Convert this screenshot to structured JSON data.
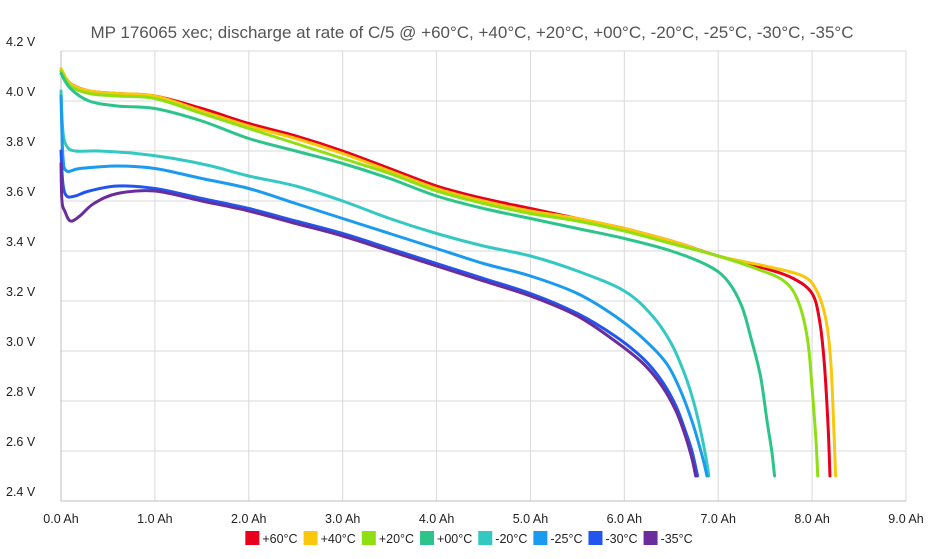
{
  "chart_data": {
    "type": "line",
    "title": "MP 176065 xec; discharge at rate of C/5 @ +60°C, +40°C, +20°C, +00°C, -20°C, -25°C, -30°C, -35°C",
    "xlabel": "",
    "ylabel": "",
    "xlim": [
      0,
      9
    ],
    "ylim": [
      2.4,
      4.2
    ],
    "x_ticks": [
      "0.0 Ah",
      "1.0 Ah",
      "2.0 Ah",
      "3.0 Ah",
      "4.0 Ah",
      "5.0 Ah",
      "6.0 Ah",
      "7.0 Ah",
      "8.0 Ah",
      "9.0 Ah"
    ],
    "y_ticks": [
      "2.4 V",
      "2.6 V",
      "2.8 V",
      "3.0 V",
      "3.2 V",
      "3.4 V",
      "3.6 V",
      "3.8 V",
      "4.0 V",
      "4.2 V"
    ],
    "grid": true,
    "legend_position": "bottom",
    "series": [
      {
        "name": "+60°C",
        "color": "#e8001c",
        "points": [
          [
            0,
            4.12
          ],
          [
            0.1,
            4.07
          ],
          [
            0.3,
            4.04
          ],
          [
            0.6,
            4.03
          ],
          [
            1.0,
            4.02
          ],
          [
            1.5,
            3.97
          ],
          [
            2.0,
            3.91
          ],
          [
            2.5,
            3.86
          ],
          [
            3.0,
            3.8
          ],
          [
            3.5,
            3.73
          ],
          [
            4.0,
            3.66
          ],
          [
            4.5,
            3.61
          ],
          [
            5.0,
            3.57
          ],
          [
            5.5,
            3.53
          ],
          [
            6.0,
            3.49
          ],
          [
            6.5,
            3.44
          ],
          [
            7.0,
            3.38
          ],
          [
            7.5,
            3.33
          ],
          [
            7.8,
            3.29
          ],
          [
            8.0,
            3.23
          ],
          [
            8.08,
            3.12
          ],
          [
            8.13,
            2.95
          ],
          [
            8.17,
            2.7
          ],
          [
            8.19,
            2.5
          ]
        ]
      },
      {
        "name": "+40°C",
        "color": "#f9c70c",
        "points": [
          [
            0,
            4.13
          ],
          [
            0.1,
            4.07
          ],
          [
            0.3,
            4.04
          ],
          [
            0.6,
            4.03
          ],
          [
            1.0,
            4.02
          ],
          [
            1.5,
            3.96
          ],
          [
            2.0,
            3.9
          ],
          [
            2.5,
            3.85
          ],
          [
            3.0,
            3.79
          ],
          [
            3.5,
            3.72
          ],
          [
            4.0,
            3.65
          ],
          [
            4.5,
            3.6
          ],
          [
            5.0,
            3.56
          ],
          [
            5.5,
            3.53
          ],
          [
            6.0,
            3.49
          ],
          [
            6.5,
            3.44
          ],
          [
            7.0,
            3.38
          ],
          [
            7.5,
            3.34
          ],
          [
            7.9,
            3.3
          ],
          [
            8.05,
            3.24
          ],
          [
            8.15,
            3.12
          ],
          [
            8.2,
            2.95
          ],
          [
            8.23,
            2.7
          ],
          [
            8.25,
            2.5
          ]
        ]
      },
      {
        "name": "+20°C",
        "color": "#8fdf14",
        "points": [
          [
            0,
            4.12
          ],
          [
            0.1,
            4.06
          ],
          [
            0.3,
            4.03
          ],
          [
            0.6,
            4.02
          ],
          [
            1.0,
            4.01
          ],
          [
            1.5,
            3.95
          ],
          [
            2.0,
            3.89
          ],
          [
            2.5,
            3.83
          ],
          [
            3.0,
            3.77
          ],
          [
            3.5,
            3.71
          ],
          [
            4.0,
            3.64
          ],
          [
            4.5,
            3.59
          ],
          [
            5.0,
            3.55
          ],
          [
            5.5,
            3.52
          ],
          [
            6.0,
            3.48
          ],
          [
            6.5,
            3.43
          ],
          [
            7.0,
            3.38
          ],
          [
            7.4,
            3.33
          ],
          [
            7.7,
            3.28
          ],
          [
            7.85,
            3.2
          ],
          [
            7.95,
            3.05
          ],
          [
            8.0,
            2.85
          ],
          [
            8.04,
            2.65
          ],
          [
            8.06,
            2.5
          ]
        ]
      },
      {
        "name": "+00°C",
        "color": "#2cc48b",
        "points": [
          [
            0,
            4.11
          ],
          [
            0.1,
            4.05
          ],
          [
            0.3,
            4.0
          ],
          [
            0.6,
            3.98
          ],
          [
            1.0,
            3.97
          ],
          [
            1.5,
            3.92
          ],
          [
            2.0,
            3.85
          ],
          [
            2.5,
            3.8
          ],
          [
            3.0,
            3.75
          ],
          [
            3.5,
            3.69
          ],
          [
            4.0,
            3.62
          ],
          [
            4.5,
            3.57
          ],
          [
            5.0,
            3.53
          ],
          [
            5.5,
            3.49
          ],
          [
            6.0,
            3.45
          ],
          [
            6.5,
            3.4
          ],
          [
            6.9,
            3.34
          ],
          [
            7.1,
            3.28
          ],
          [
            7.25,
            3.18
          ],
          [
            7.35,
            3.05
          ],
          [
            7.45,
            2.9
          ],
          [
            7.52,
            2.72
          ],
          [
            7.57,
            2.6
          ],
          [
            7.6,
            2.5
          ]
        ]
      },
      {
        "name": "-20°C",
        "color": "#33c9c2",
        "points": [
          [
            0,
            4.04
          ],
          [
            0.02,
            3.88
          ],
          [
            0.06,
            3.82
          ],
          [
            0.15,
            3.8
          ],
          [
            0.4,
            3.8
          ],
          [
            0.8,
            3.79
          ],
          [
            1.2,
            3.77
          ],
          [
            1.6,
            3.74
          ],
          [
            2.0,
            3.7
          ],
          [
            2.5,
            3.66
          ],
          [
            3.0,
            3.6
          ],
          [
            3.5,
            3.53
          ],
          [
            4.0,
            3.47
          ],
          [
            4.5,
            3.42
          ],
          [
            5.0,
            3.38
          ],
          [
            5.5,
            3.32
          ],
          [
            6.0,
            3.24
          ],
          [
            6.3,
            3.14
          ],
          [
            6.5,
            3.03
          ],
          [
            6.65,
            2.9
          ],
          [
            6.75,
            2.78
          ],
          [
            6.83,
            2.65
          ],
          [
            6.88,
            2.55
          ],
          [
            6.9,
            2.5
          ]
        ]
      },
      {
        "name": "-25°C",
        "color": "#1a9bf0",
        "points": [
          [
            0,
            4.02
          ],
          [
            0.02,
            3.78
          ],
          [
            0.06,
            3.72
          ],
          [
            0.2,
            3.73
          ],
          [
            0.6,
            3.74
          ],
          [
            1.0,
            3.73
          ],
          [
            1.5,
            3.69
          ],
          [
            2.0,
            3.65
          ],
          [
            2.5,
            3.59
          ],
          [
            3.0,
            3.53
          ],
          [
            3.5,
            3.47
          ],
          [
            4.0,
            3.41
          ],
          [
            4.5,
            3.35
          ],
          [
            5.0,
            3.3
          ],
          [
            5.5,
            3.23
          ],
          [
            5.9,
            3.14
          ],
          [
            6.2,
            3.05
          ],
          [
            6.45,
            2.95
          ],
          [
            6.6,
            2.84
          ],
          [
            6.72,
            2.72
          ],
          [
            6.8,
            2.62
          ],
          [
            6.85,
            2.55
          ],
          [
            6.88,
            2.5
          ]
        ]
      },
      {
        "name": "-30°C",
        "color": "#2255ee",
        "points": [
          [
            0,
            3.8
          ],
          [
            0.02,
            3.67
          ],
          [
            0.06,
            3.62
          ],
          [
            0.15,
            3.62
          ],
          [
            0.3,
            3.64
          ],
          [
            0.6,
            3.66
          ],
          [
            1.0,
            3.65
          ],
          [
            1.5,
            3.61
          ],
          [
            2.0,
            3.57
          ],
          [
            2.5,
            3.52
          ],
          [
            3.0,
            3.47
          ],
          [
            3.5,
            3.41
          ],
          [
            4.0,
            3.35
          ],
          [
            4.5,
            3.29
          ],
          [
            5.0,
            3.23
          ],
          [
            5.5,
            3.15
          ],
          [
            5.9,
            3.06
          ],
          [
            6.2,
            2.97
          ],
          [
            6.4,
            2.88
          ],
          [
            6.55,
            2.78
          ],
          [
            6.65,
            2.68
          ],
          [
            6.72,
            2.6
          ],
          [
            6.78,
            2.5
          ]
        ]
      },
      {
        "name": "-35°C",
        "color": "#6a2d9c",
        "points": [
          [
            0,
            3.75
          ],
          [
            0.01,
            3.6
          ],
          [
            0.04,
            3.56
          ],
          [
            0.1,
            3.52
          ],
          [
            0.2,
            3.54
          ],
          [
            0.35,
            3.59
          ],
          [
            0.6,
            3.63
          ],
          [
            1.0,
            3.64
          ],
          [
            1.5,
            3.6
          ],
          [
            2.0,
            3.56
          ],
          [
            2.5,
            3.51
          ],
          [
            3.0,
            3.46
          ],
          [
            3.5,
            3.4
          ],
          [
            4.0,
            3.34
          ],
          [
            4.5,
            3.28
          ],
          [
            5.0,
            3.22
          ],
          [
            5.5,
            3.14
          ],
          [
            5.9,
            3.04
          ],
          [
            6.2,
            2.95
          ],
          [
            6.4,
            2.86
          ],
          [
            6.55,
            2.76
          ],
          [
            6.65,
            2.66
          ],
          [
            6.72,
            2.57
          ],
          [
            6.76,
            2.5
          ]
        ]
      }
    ]
  }
}
